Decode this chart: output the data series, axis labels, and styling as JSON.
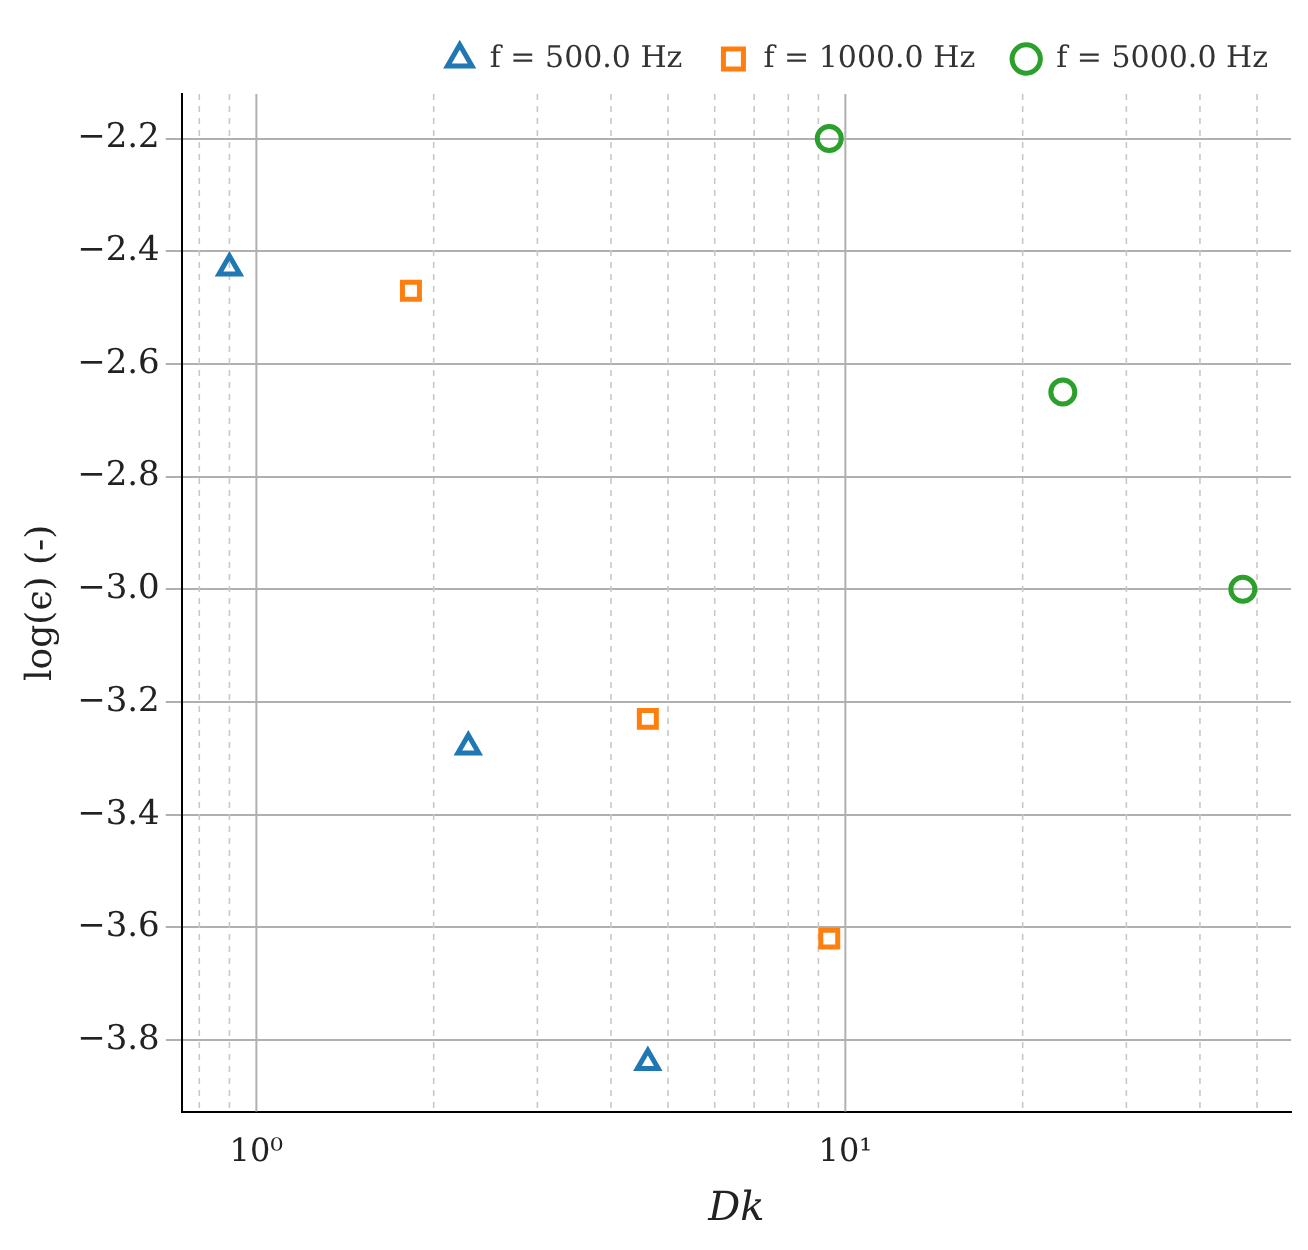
{
  "chart_data": {
    "type": "scatter",
    "xlabel": "Dk",
    "ylabel": "log(ϵ) (-)",
    "log": "x",
    "xlim": [
      0.747,
      57.1
    ],
    "ylim": [
      -3.927,
      -2.121
    ],
    "xticks": [
      {
        "value": 1,
        "label": "10⁰"
      },
      {
        "value": 2,
        "label": null
      },
      {
        "value": 3,
        "label": null
      },
      {
        "value": 4,
        "label": null
      },
      {
        "value": 5,
        "label": null
      },
      {
        "value": 6,
        "label": null
      },
      {
        "value": 7,
        "label": null
      },
      {
        "value": 8,
        "label": null
      },
      {
        "value": 9,
        "label": null
      },
      {
        "value": 10,
        "label": "10¹"
      },
      {
        "value": 20,
        "label": null
      },
      {
        "value": 30,
        "label": null
      },
      {
        "value": 40,
        "label": null
      },
      {
        "value": 50,
        "label": null
      },
      {
        "value": 0.8,
        "label": null
      },
      {
        "value": 0.9,
        "label": null
      }
    ],
    "yticks": [
      {
        "value": -3.8,
        "label": "−3.8"
      },
      {
        "value": -3.6,
        "label": "−3.6"
      },
      {
        "value": -3.4,
        "label": "−3.4"
      },
      {
        "value": -3.2,
        "label": "−3.2"
      },
      {
        "value": -3.0,
        "label": "−3.0"
      },
      {
        "value": -2.8,
        "label": "−2.8"
      },
      {
        "value": -2.6,
        "label": "−2.6"
      },
      {
        "value": -2.4,
        "label": "−2.4"
      },
      {
        "value": -2.2,
        "label": "−2.2"
      }
    ],
    "grid": true,
    "legend": "top right",
    "series": [
      {
        "name": "f = 500.0 Hz",
        "color": "#1f77b4",
        "marker": "triangle",
        "x": [
          0.9,
          2.29,
          4.62
        ],
        "values": [
          -2.43,
          -3.28,
          -3.84
        ]
      },
      {
        "name": "f = 1000.0 Hz",
        "color": "#ff7f0e",
        "marker": "square",
        "x": [
          1.83,
          4.62,
          9.39
        ],
        "values": [
          -2.47,
          -3.23,
          -3.62
        ]
      },
      {
        "name": "f = 5000.0 Hz",
        "color": "#2ca02c",
        "marker": "circle",
        "x": [
          9.39,
          23.4,
          47.3
        ],
        "values": [
          -2.2,
          -2.65,
          -3.0
        ]
      }
    ]
  }
}
